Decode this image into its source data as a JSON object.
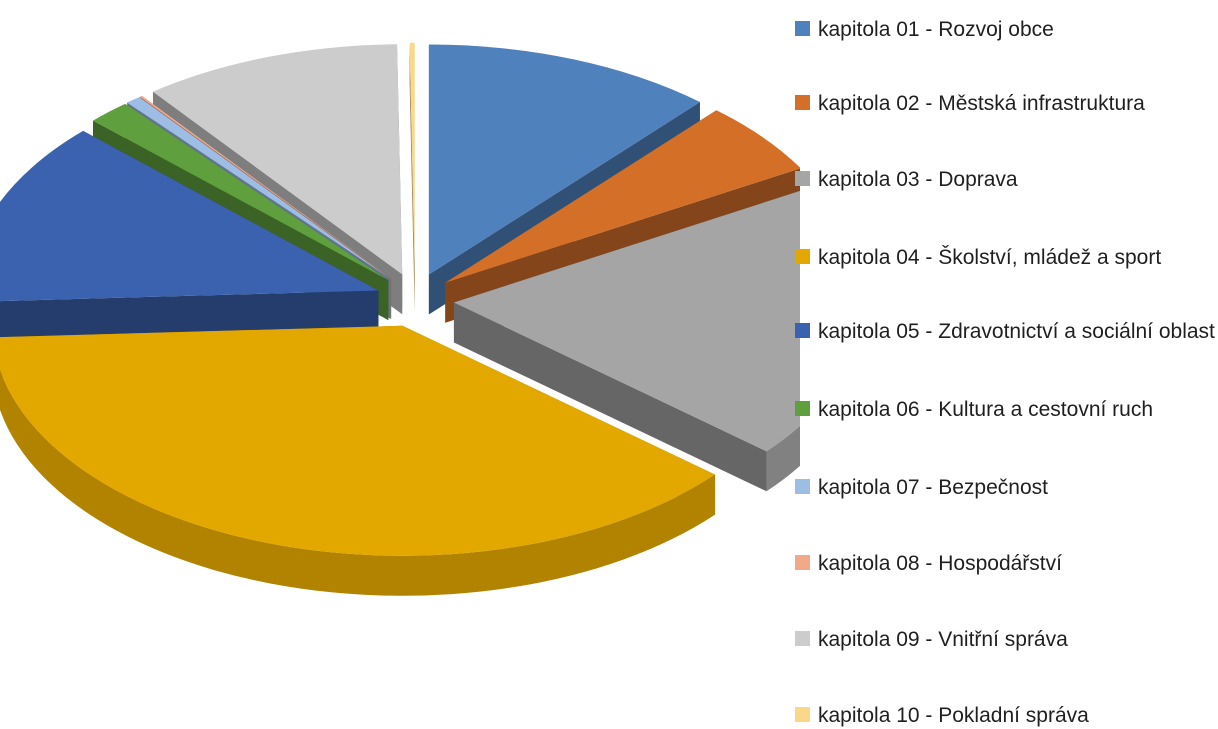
{
  "chart_data": {
    "type": "pie",
    "style": "3d-exploded",
    "legend_position": "right",
    "slices": [
      {
        "label": "kapitola 01 - Rozvoj obce",
        "value": 11.5,
        "color": "#4F81BD"
      },
      {
        "label": "kapitola 02 - Městská infrastruktura",
        "value": 5.2,
        "color": "#D46F28"
      },
      {
        "label": "kapitola 03 - Doprava",
        "value": 19.5,
        "color": "#A5A5A5"
      },
      {
        "label": "kapitola 04 - Školství, mládež a sport",
        "value": 38.0,
        "color": "#E3A800"
      },
      {
        "label": "kapitola 05 - Zdravotnictví a sociální oblast",
        "value": 13.0,
        "color": "#3A62AE"
      },
      {
        "label": "kapitola 06 - Kultura a cestovní ruch",
        "value": 1.7,
        "color": "#5F9F3D"
      },
      {
        "label": "kapitola 07 - Bezpečnost",
        "value": 0.6,
        "color": "#9DBDE5"
      },
      {
        "label": "kapitola 08 - Hospodářství",
        "value": 0.1,
        "color": "#F2A98A"
      },
      {
        "label": "kapitola 09 - Vnitřní správa",
        "value": 10.2,
        "color": "#CCCCCC"
      },
      {
        "label": "kapitola 10 - Pokladní správa",
        "value": 0.2,
        "color": "#FBD78A"
      }
    ]
  }
}
